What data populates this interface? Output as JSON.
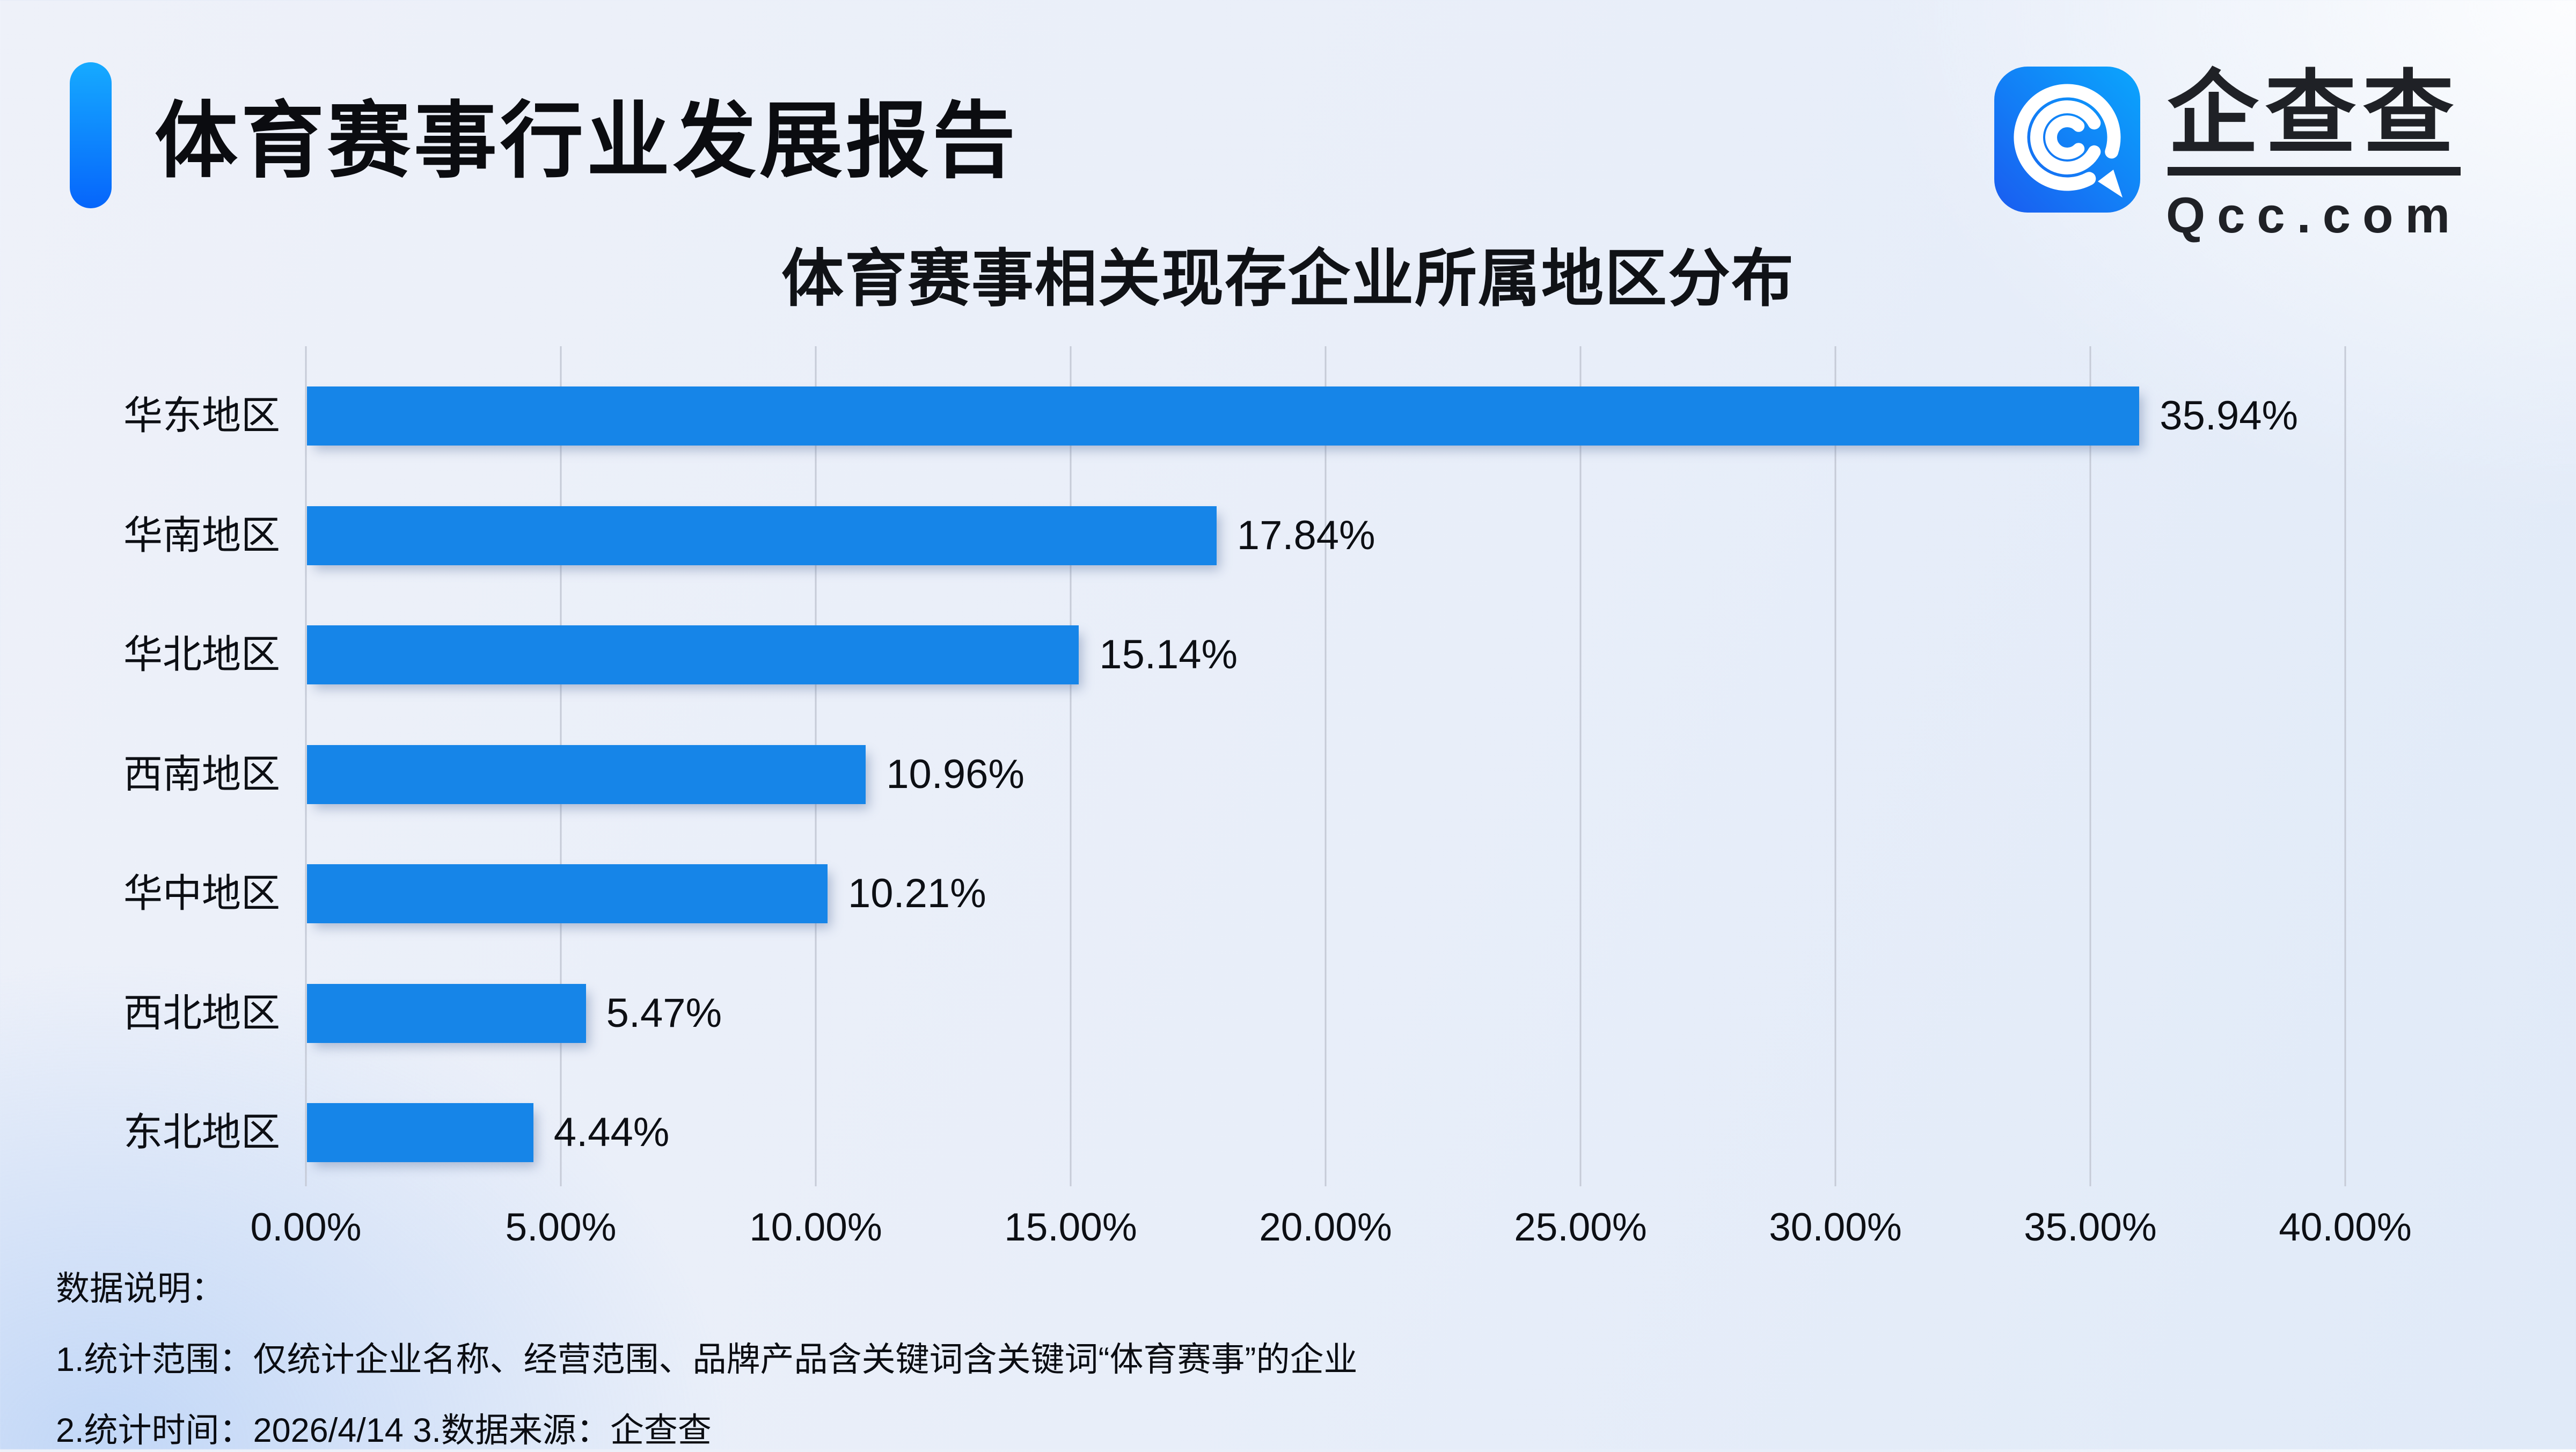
{
  "header": {
    "title": "体育赛事行业发展报告"
  },
  "logo": {
    "brand": "企查查",
    "domain": "Qcc.com"
  },
  "chart_data": {
    "type": "bar",
    "orientation": "horizontal",
    "title": "体育赛事相关现存企业所属地区分布",
    "categories": [
      "华东地区",
      "华南地区",
      "华北地区",
      "西南地区",
      "华中地区",
      "西北地区",
      "东北地区"
    ],
    "values": [
      35.94,
      17.84,
      15.14,
      10.96,
      10.21,
      5.47,
      4.44
    ],
    "value_labels": [
      "35.94%",
      "17.84%",
      "15.14%",
      "10.96%",
      "10.21%",
      "5.47%",
      "4.44%"
    ],
    "x_ticks": [
      "0.00%",
      "5.00%",
      "10.00%",
      "15.00%",
      "20.00%",
      "25.00%",
      "30.00%",
      "35.00%",
      "40.00%"
    ],
    "xlim": [
      0,
      40
    ],
    "xlabel": "",
    "ylabel": "",
    "grid": true,
    "legend": "none",
    "bar_color": "#1685e8",
    "grid_color": "#c6cbd7"
  },
  "notes": {
    "heading": "数据说明：",
    "line1": "1.统计范围：仅统计企业名称、经营范围、品牌产品含关键词含关键词“体育赛事”的企业",
    "line2": "2.统计时间：2026/4/14  3.数据来源：企查查"
  },
  "colors": {
    "accent_top": "#16aaff",
    "accent_bottom": "#0665fb",
    "text": "#0d0f14",
    "background": "#e9eef8"
  }
}
